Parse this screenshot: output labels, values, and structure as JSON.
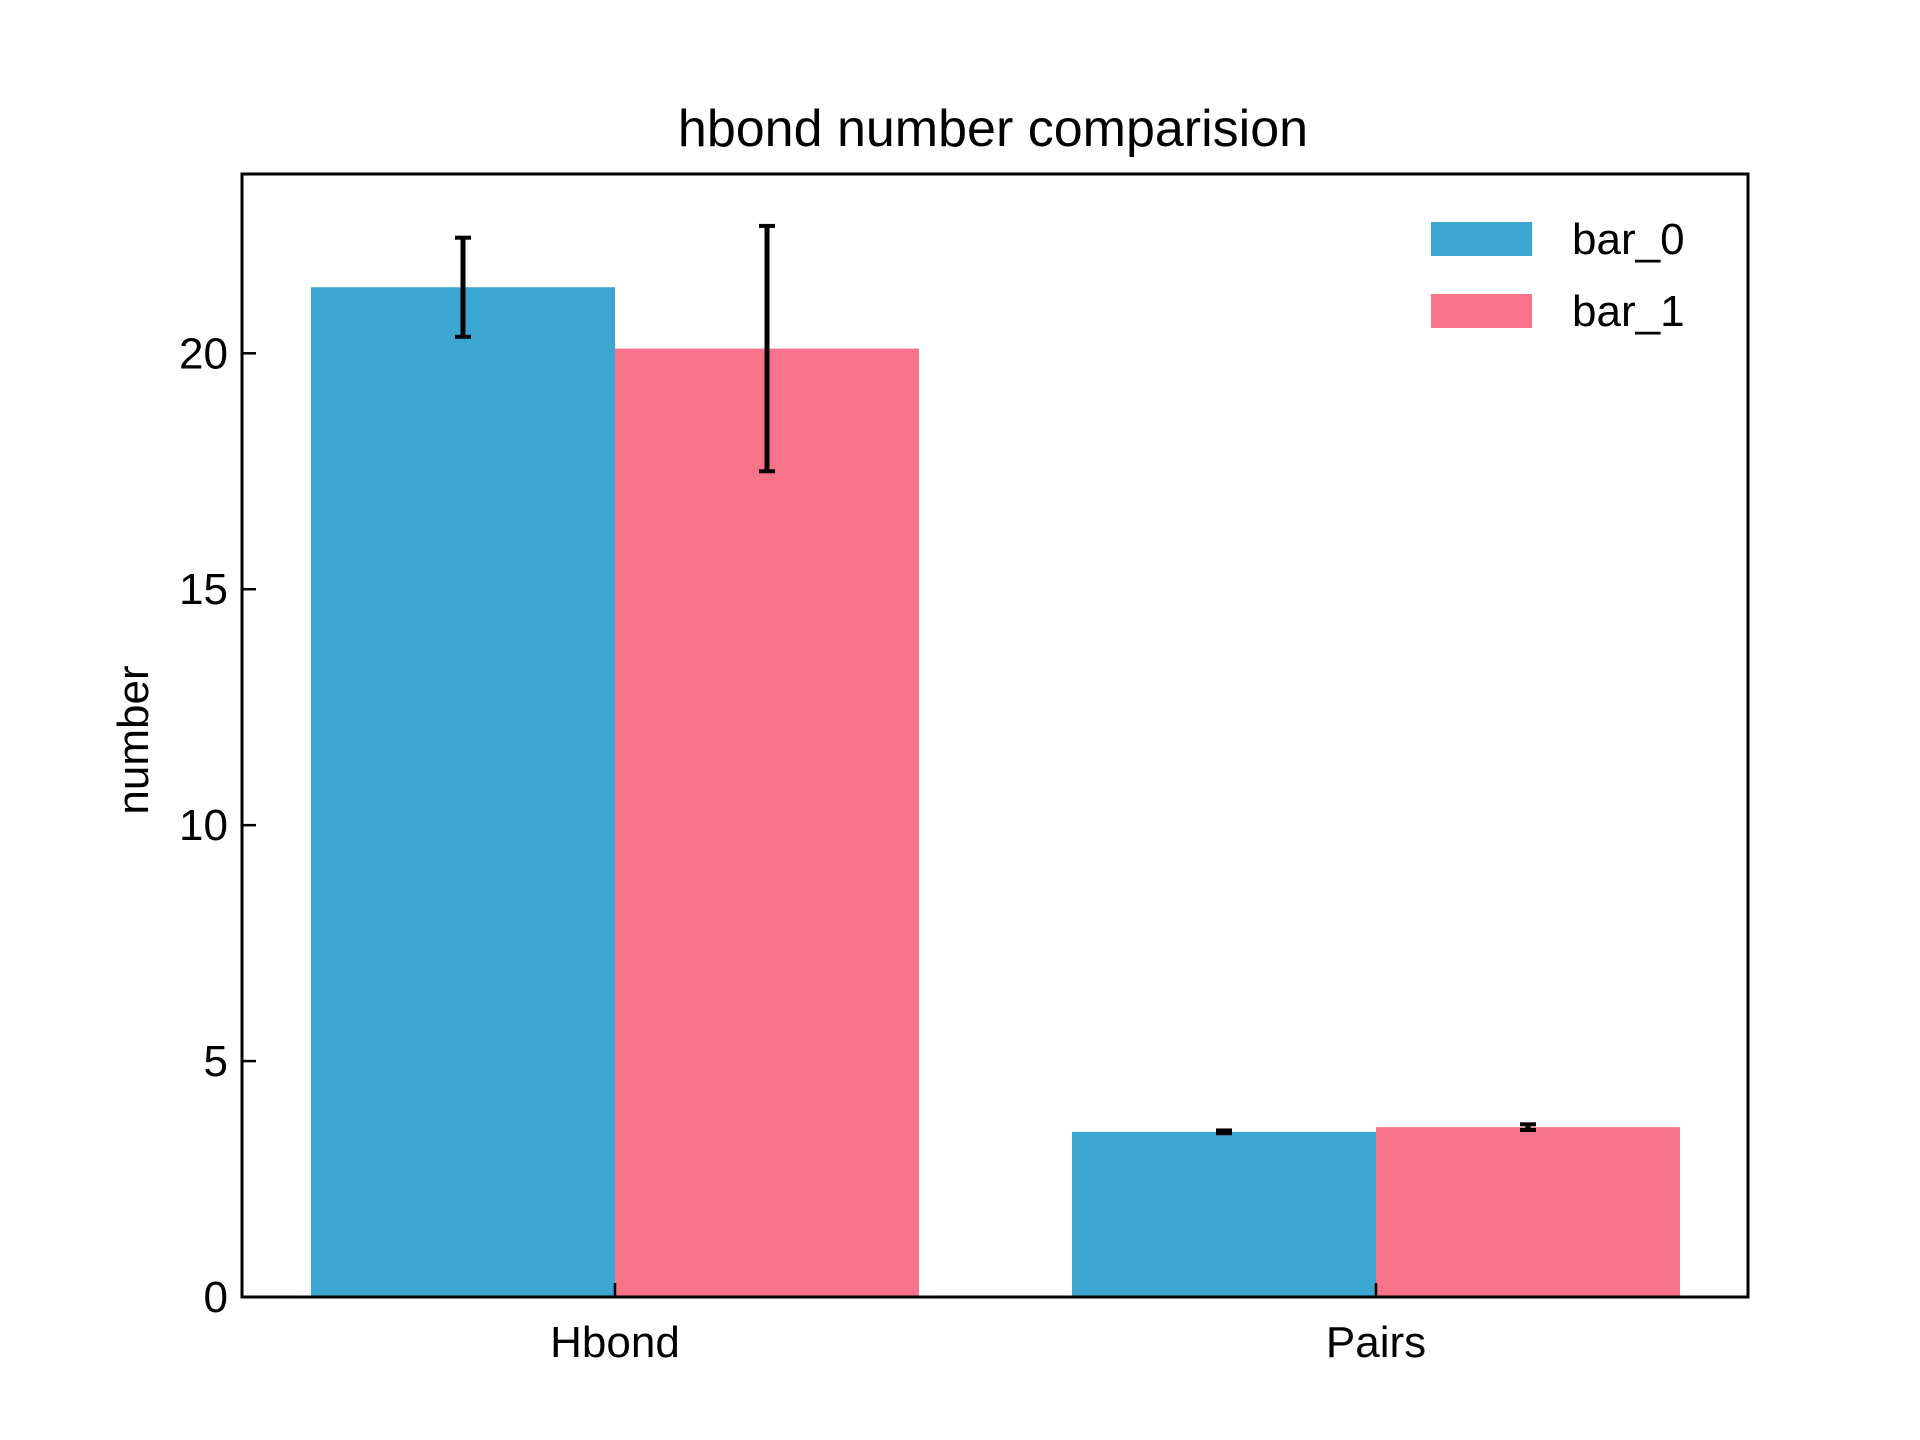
{
  "chart_data": {
    "type": "bar",
    "title": "hbond number comparision",
    "xlabel": "",
    "ylabel": "number",
    "categories": [
      "Hbond",
      "Pairs"
    ],
    "series": [
      {
        "name": "bar_0",
        "values": [
          21.4,
          3.5
        ],
        "errors": [
          1.05,
          0.03
        ],
        "color": "#3ba6cf"
      },
      {
        "name": "bar_1",
        "values": [
          20.1,
          3.6
        ],
        "errors": [
          2.6,
          0.06
        ],
        "color": "#f67389"
      }
    ],
    "ylim": [
      0,
      23.8
    ],
    "yticks": [
      0,
      5,
      10,
      15,
      20
    ],
    "ytick_labels": [
      "0",
      "5",
      "10",
      "15",
      "20"
    ],
    "grid": false,
    "legend_position": "top-right",
    "error_bar_color": "#000000"
  }
}
